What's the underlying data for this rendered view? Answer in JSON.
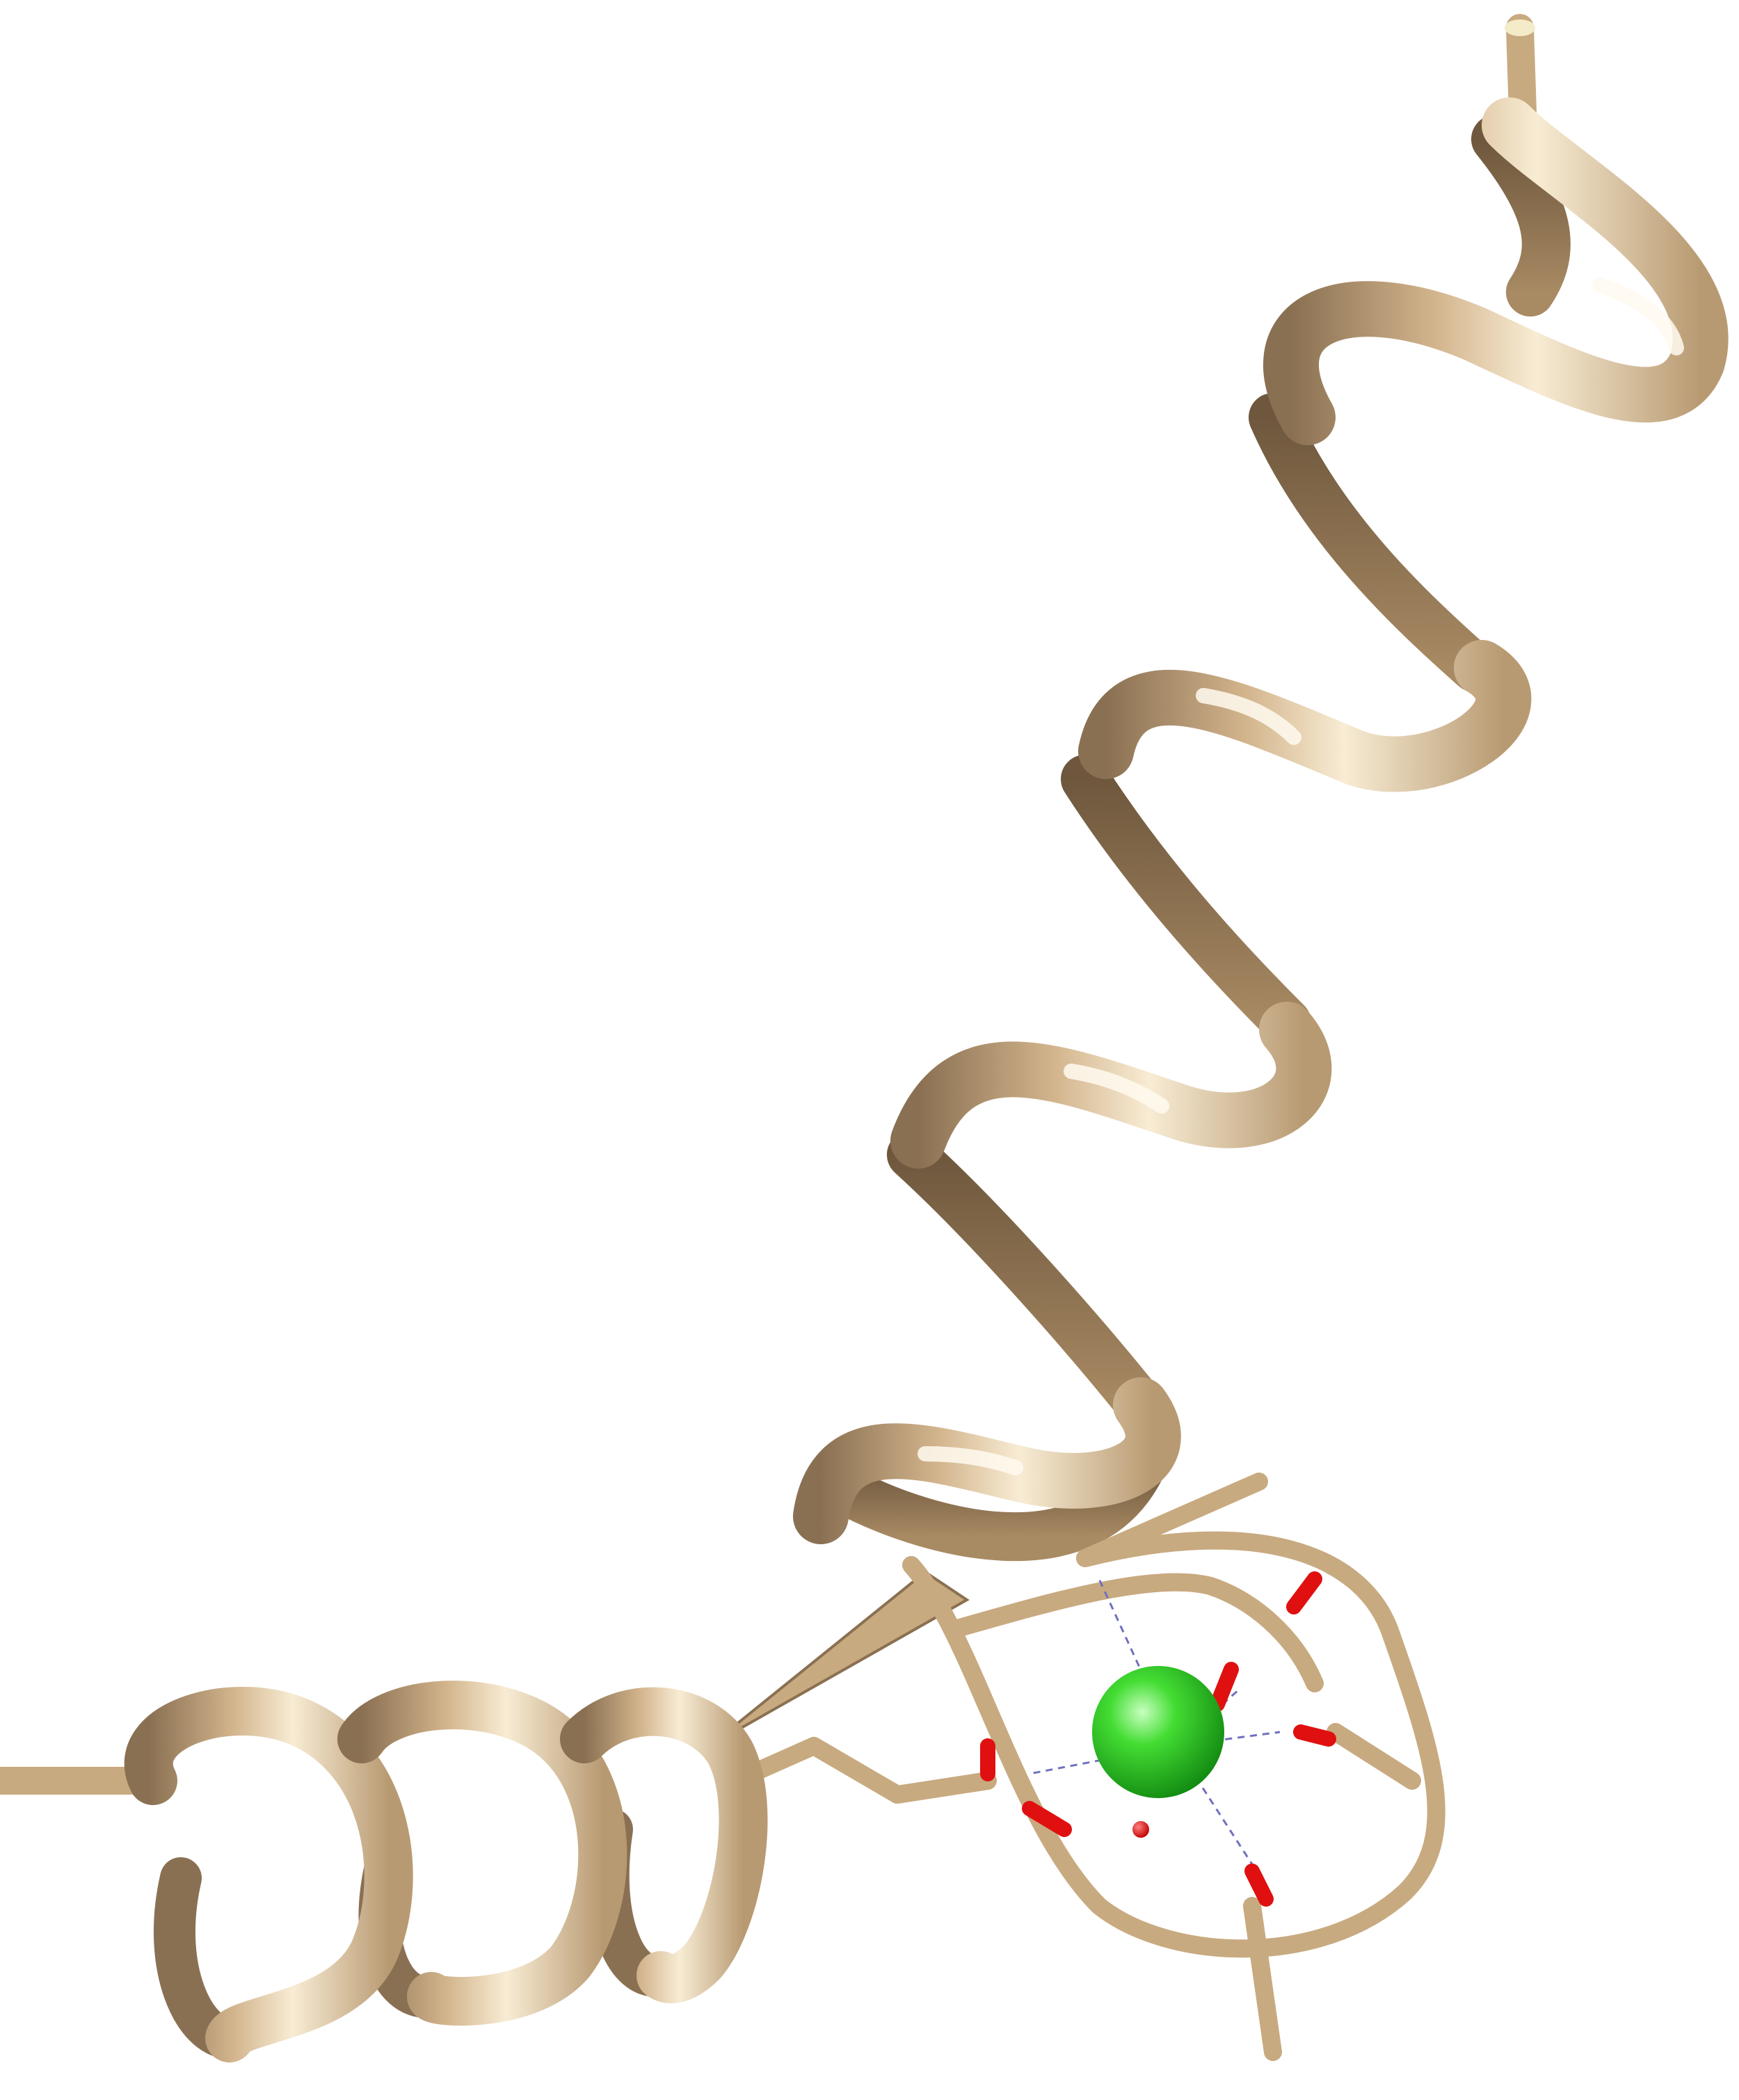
{
  "scene": {
    "subject": "protein-ribbon-with-calcium-ion",
    "colors": {
      "background": "#ffffff",
      "ribbon": "#d2b48c",
      "ribbon_light": "#f5e6c8",
      "ribbon_shadow": "#8a7052",
      "ribbon_dark": "#5e4a33",
      "oxygen": "#e01010",
      "calcium": "#22cc22",
      "calcium_highlight": "#b8ffb0",
      "contact_line": "#7070c0"
    },
    "icons": {
      "helix": "helix-ribbon-icon",
      "ion": "calcium-sphere-icon"
    }
  }
}
